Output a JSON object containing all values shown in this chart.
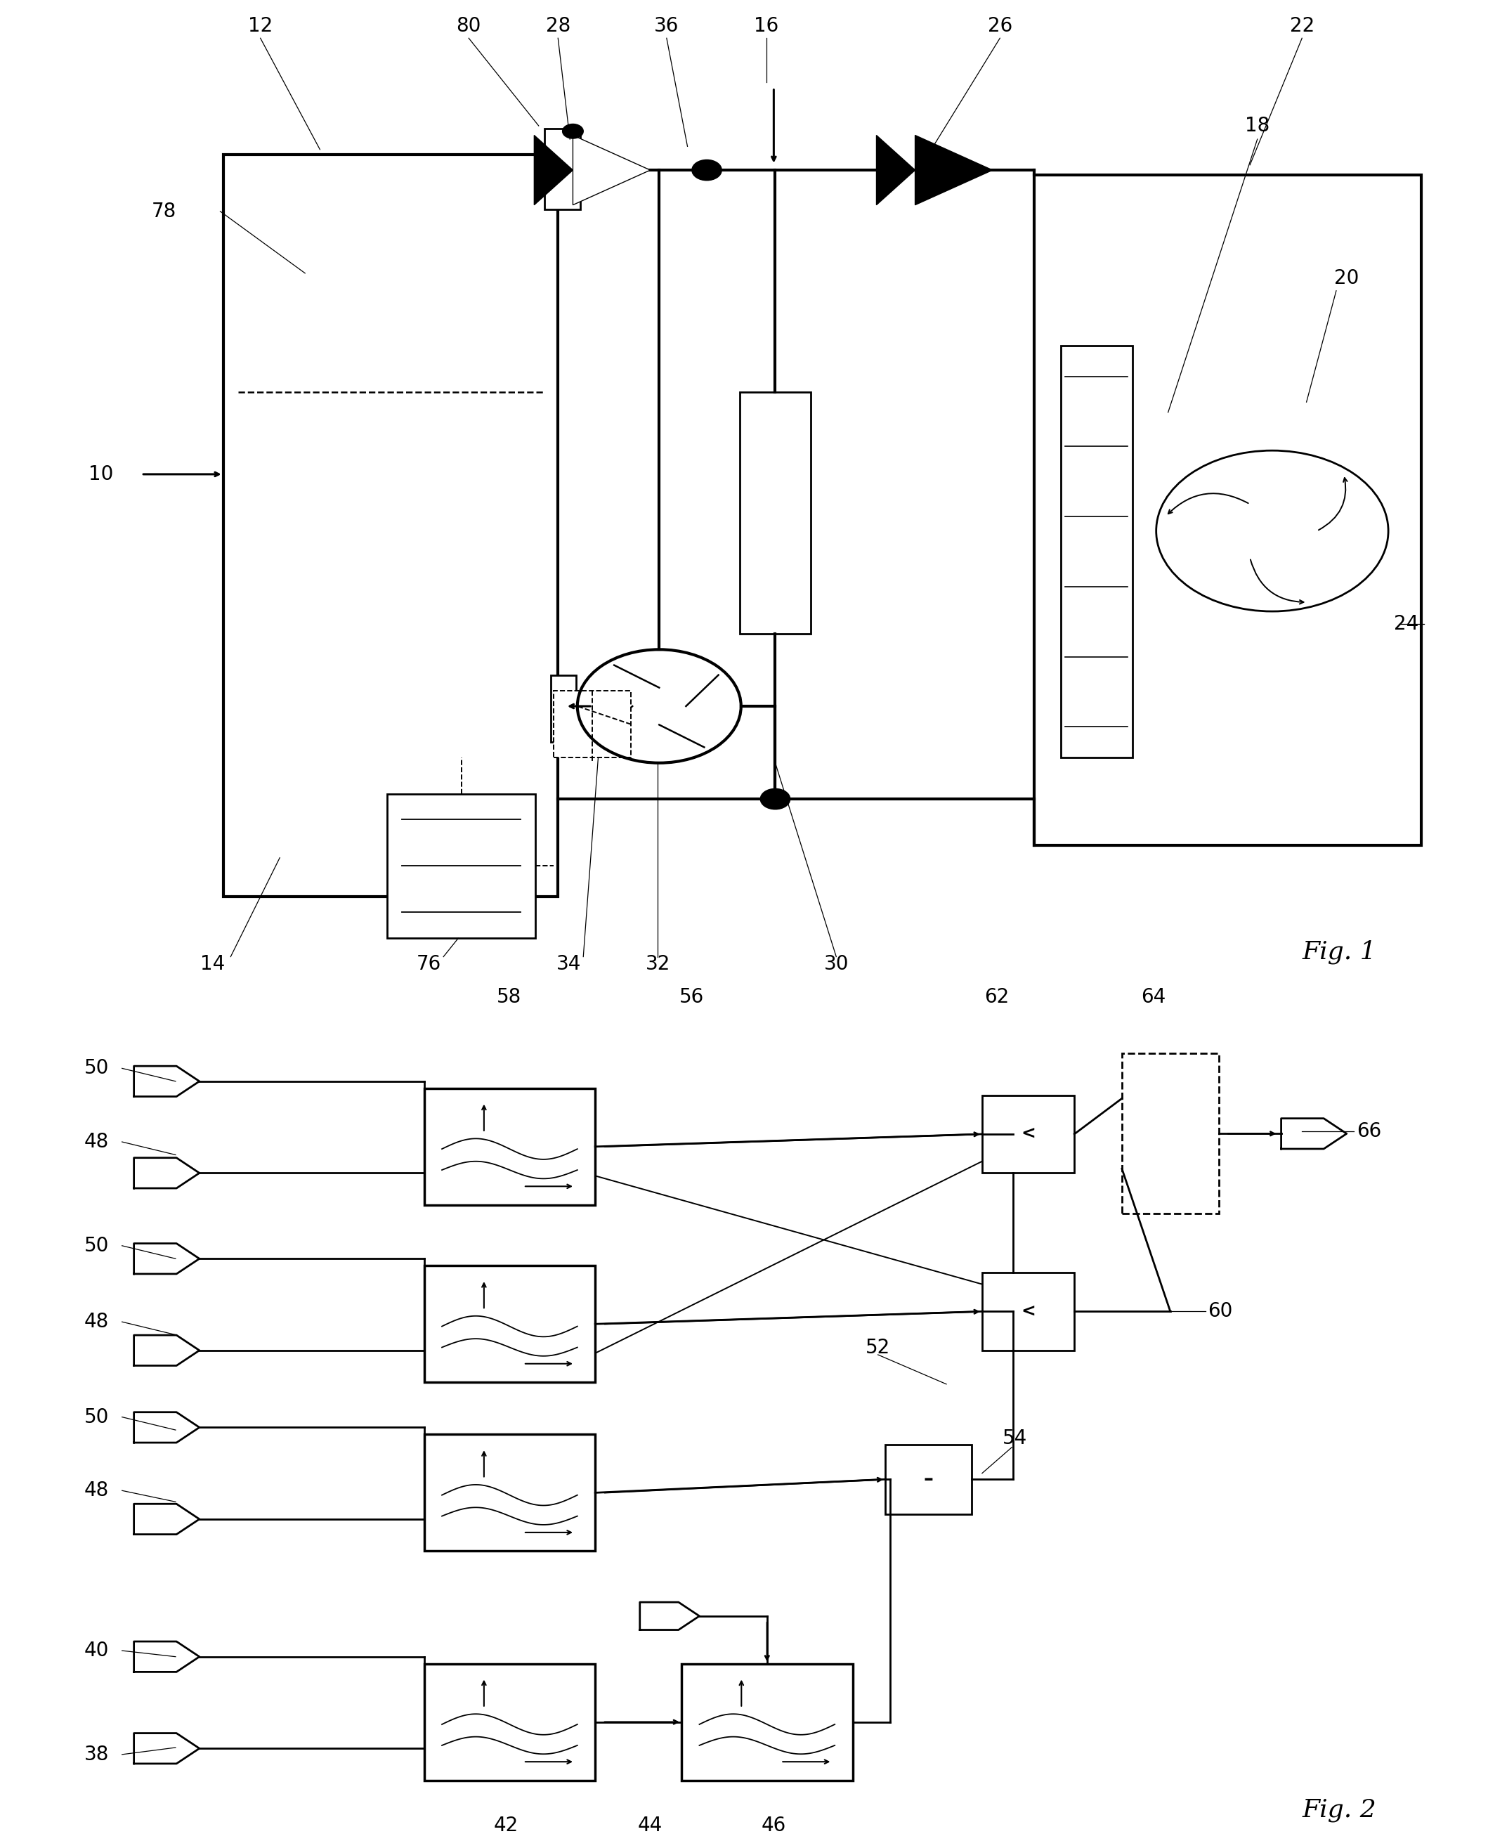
{
  "background": "#ffffff",
  "col": "#000000",
  "lw_thick": 3.0,
  "lw_main": 2.0,
  "lw_thin": 1.4,
  "fs_label": 20,
  "fs_fig": 26,
  "fig1_title": "Fig. 1",
  "fig2_title": "Fig. 2"
}
